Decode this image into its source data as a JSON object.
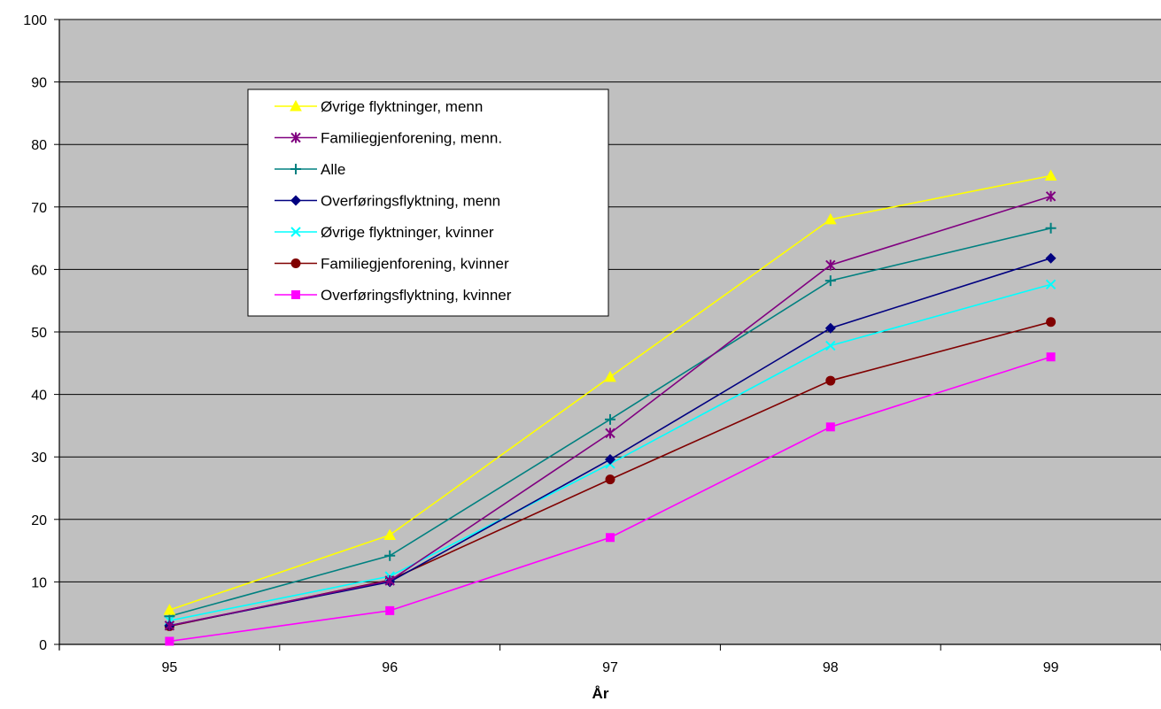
{
  "chart_data": {
    "type": "line",
    "title": "",
    "xlabel": "År",
    "ylabel": "",
    "categories": [
      "95",
      "96",
      "97",
      "98",
      "99"
    ],
    "ylim": [
      0,
      100
    ],
    "yticks": [
      "0",
      "10",
      "20",
      "30",
      "40",
      "50",
      "60",
      "70",
      "80",
      "90",
      "100"
    ],
    "grid": true,
    "background": "#c0c0c0",
    "legend_placement": "upper-left",
    "series": [
      {
        "name": "Øvrige flyktninger, menn",
        "color": "#ffff00",
        "marker": "triangle",
        "values": [
          5.5,
          17.5,
          42.8,
          68.0,
          75.0
        ]
      },
      {
        "name": "Familiegjenforening, menn.",
        "color": "#800080",
        "marker": "star",
        "values": [
          3.0,
          10.2,
          33.8,
          60.7,
          71.7
        ]
      },
      {
        "name": "Alle",
        "color": "#008080",
        "marker": "plus",
        "values": [
          4.5,
          14.2,
          36.0,
          58.2,
          66.6
        ]
      },
      {
        "name": "Overføringsflyktning, menn",
        "color": "#000080",
        "marker": "diamond",
        "values": [
          3.0,
          10.0,
          29.6,
          50.6,
          61.8
        ]
      },
      {
        "name": "Øvrige flyktninger, kvinner",
        "color": "#00ffff",
        "marker": "x",
        "values": [
          3.8,
          10.9,
          28.9,
          47.8,
          57.6
        ]
      },
      {
        "name": "Familiegjenforening, kvinner",
        "color": "#800000",
        "marker": "circle",
        "values": [
          2.9,
          10.3,
          26.4,
          42.2,
          51.6
        ]
      },
      {
        "name": "Overføringsflyktning, kvinner",
        "color": "#ff00ff",
        "marker": "square",
        "values": [
          0.5,
          5.4,
          17.1,
          34.8,
          46.0
        ]
      }
    ]
  }
}
